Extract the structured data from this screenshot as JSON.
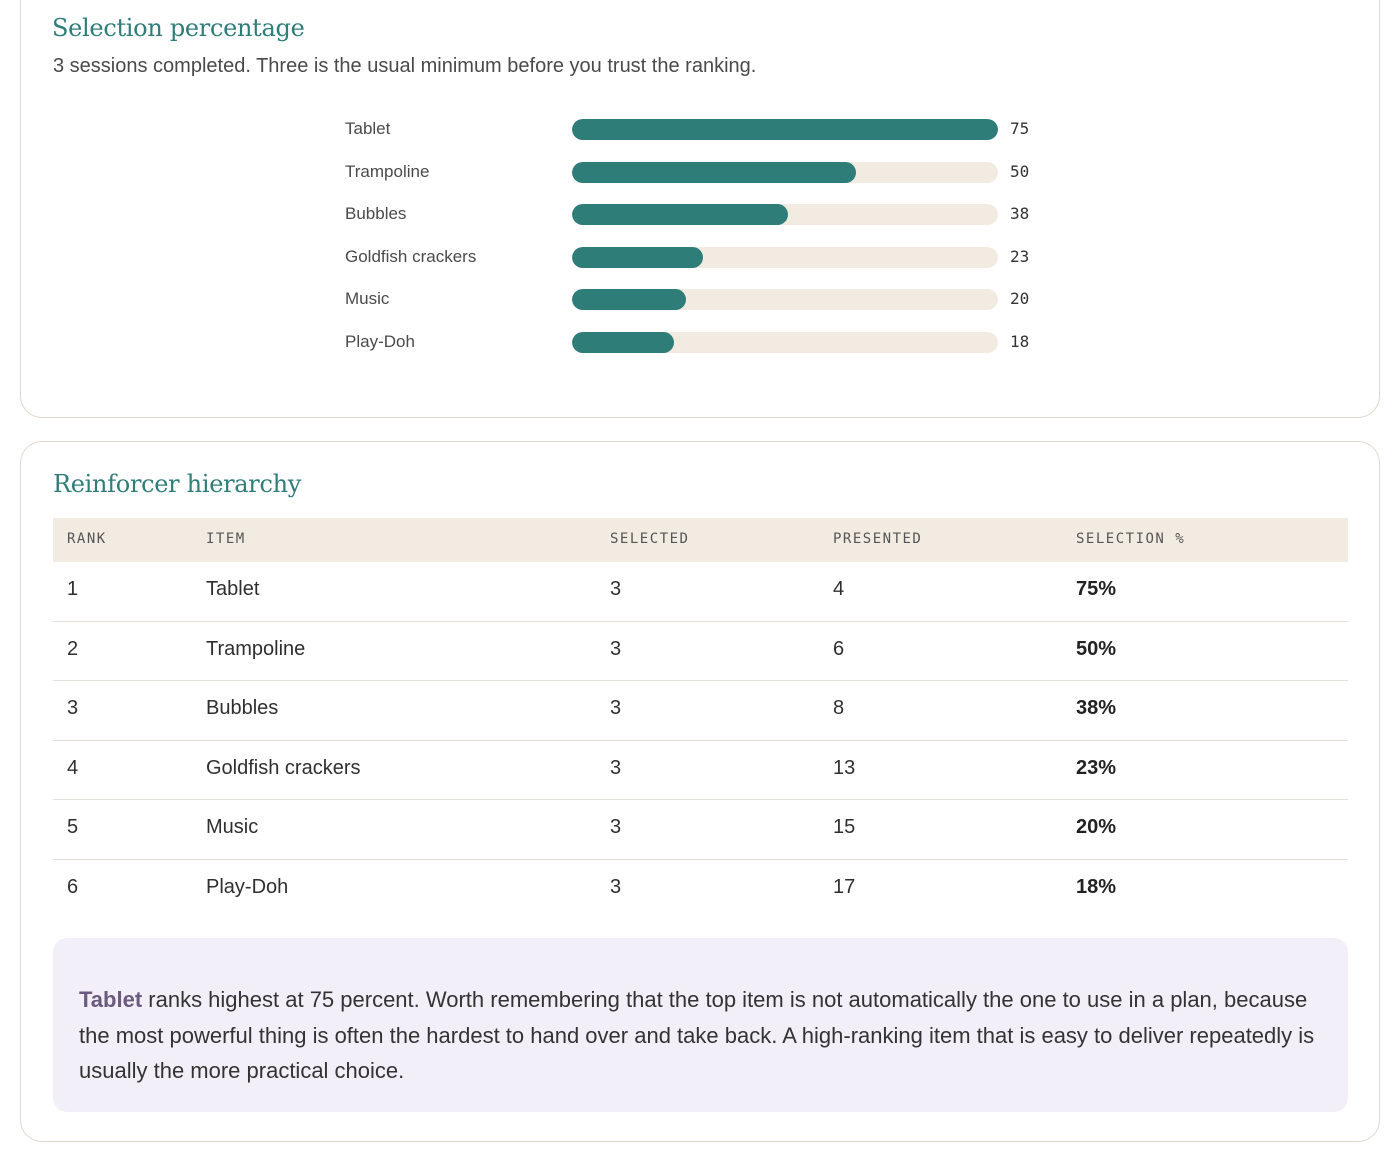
{
  "selection_card": {
    "title": "Selection percentage",
    "subtitle": "3 sessions completed. Three is the usual minimum before you trust the ranking."
  },
  "chart_data": {
    "type": "bar",
    "categories": [
      "Tablet",
      "Trampoline",
      "Bubbles",
      "Goldfish crackers",
      "Music",
      "Play-Doh"
    ],
    "values": [
      75,
      50,
      38,
      23,
      20,
      18
    ],
    "xlim": [
      0,
      75
    ],
    "title": "",
    "xlabel": "",
    "ylabel": "",
    "grid": false,
    "bar_color": "#2e7d79",
    "track_color": "#f2ebe1"
  },
  "hierarchy_card": {
    "title": "Reinforcer hierarchy",
    "columns": [
      "RANK",
      "ITEM",
      "SELECTED",
      "PRESENTED",
      "SELECTION %"
    ],
    "rows": [
      {
        "rank": "1",
        "item": "Tablet",
        "selected": "3",
        "presented": "4",
        "pct": "75%"
      },
      {
        "rank": "2",
        "item": "Trampoline",
        "selected": "3",
        "presented": "6",
        "pct": "50%"
      },
      {
        "rank": "3",
        "item": "Bubbles",
        "selected": "3",
        "presented": "8",
        "pct": "38%"
      },
      {
        "rank": "4",
        "item": "Goldfish crackers",
        "selected": "3",
        "presented": "13",
        "pct": "23%"
      },
      {
        "rank": "5",
        "item": "Music",
        "selected": "3",
        "presented": "15",
        "pct": "20%"
      },
      {
        "rank": "6",
        "item": "Play-Doh",
        "selected": "3",
        "presented": "17",
        "pct": "18%"
      }
    ],
    "note": {
      "strong": "Tablet",
      "text": " ranks highest at 75 percent. Worth remembering that the top item is not automatically the one to use in a plan, because the most powerful thing is often the hardest to hand over and take back. A high-ranking item that is easy to deliver repeatedly is usually the more practical choice."
    }
  },
  "colors": {
    "accent": "#2e7d79",
    "note_bg": "#f2eff9",
    "header_bg": "#f2ebe1"
  }
}
